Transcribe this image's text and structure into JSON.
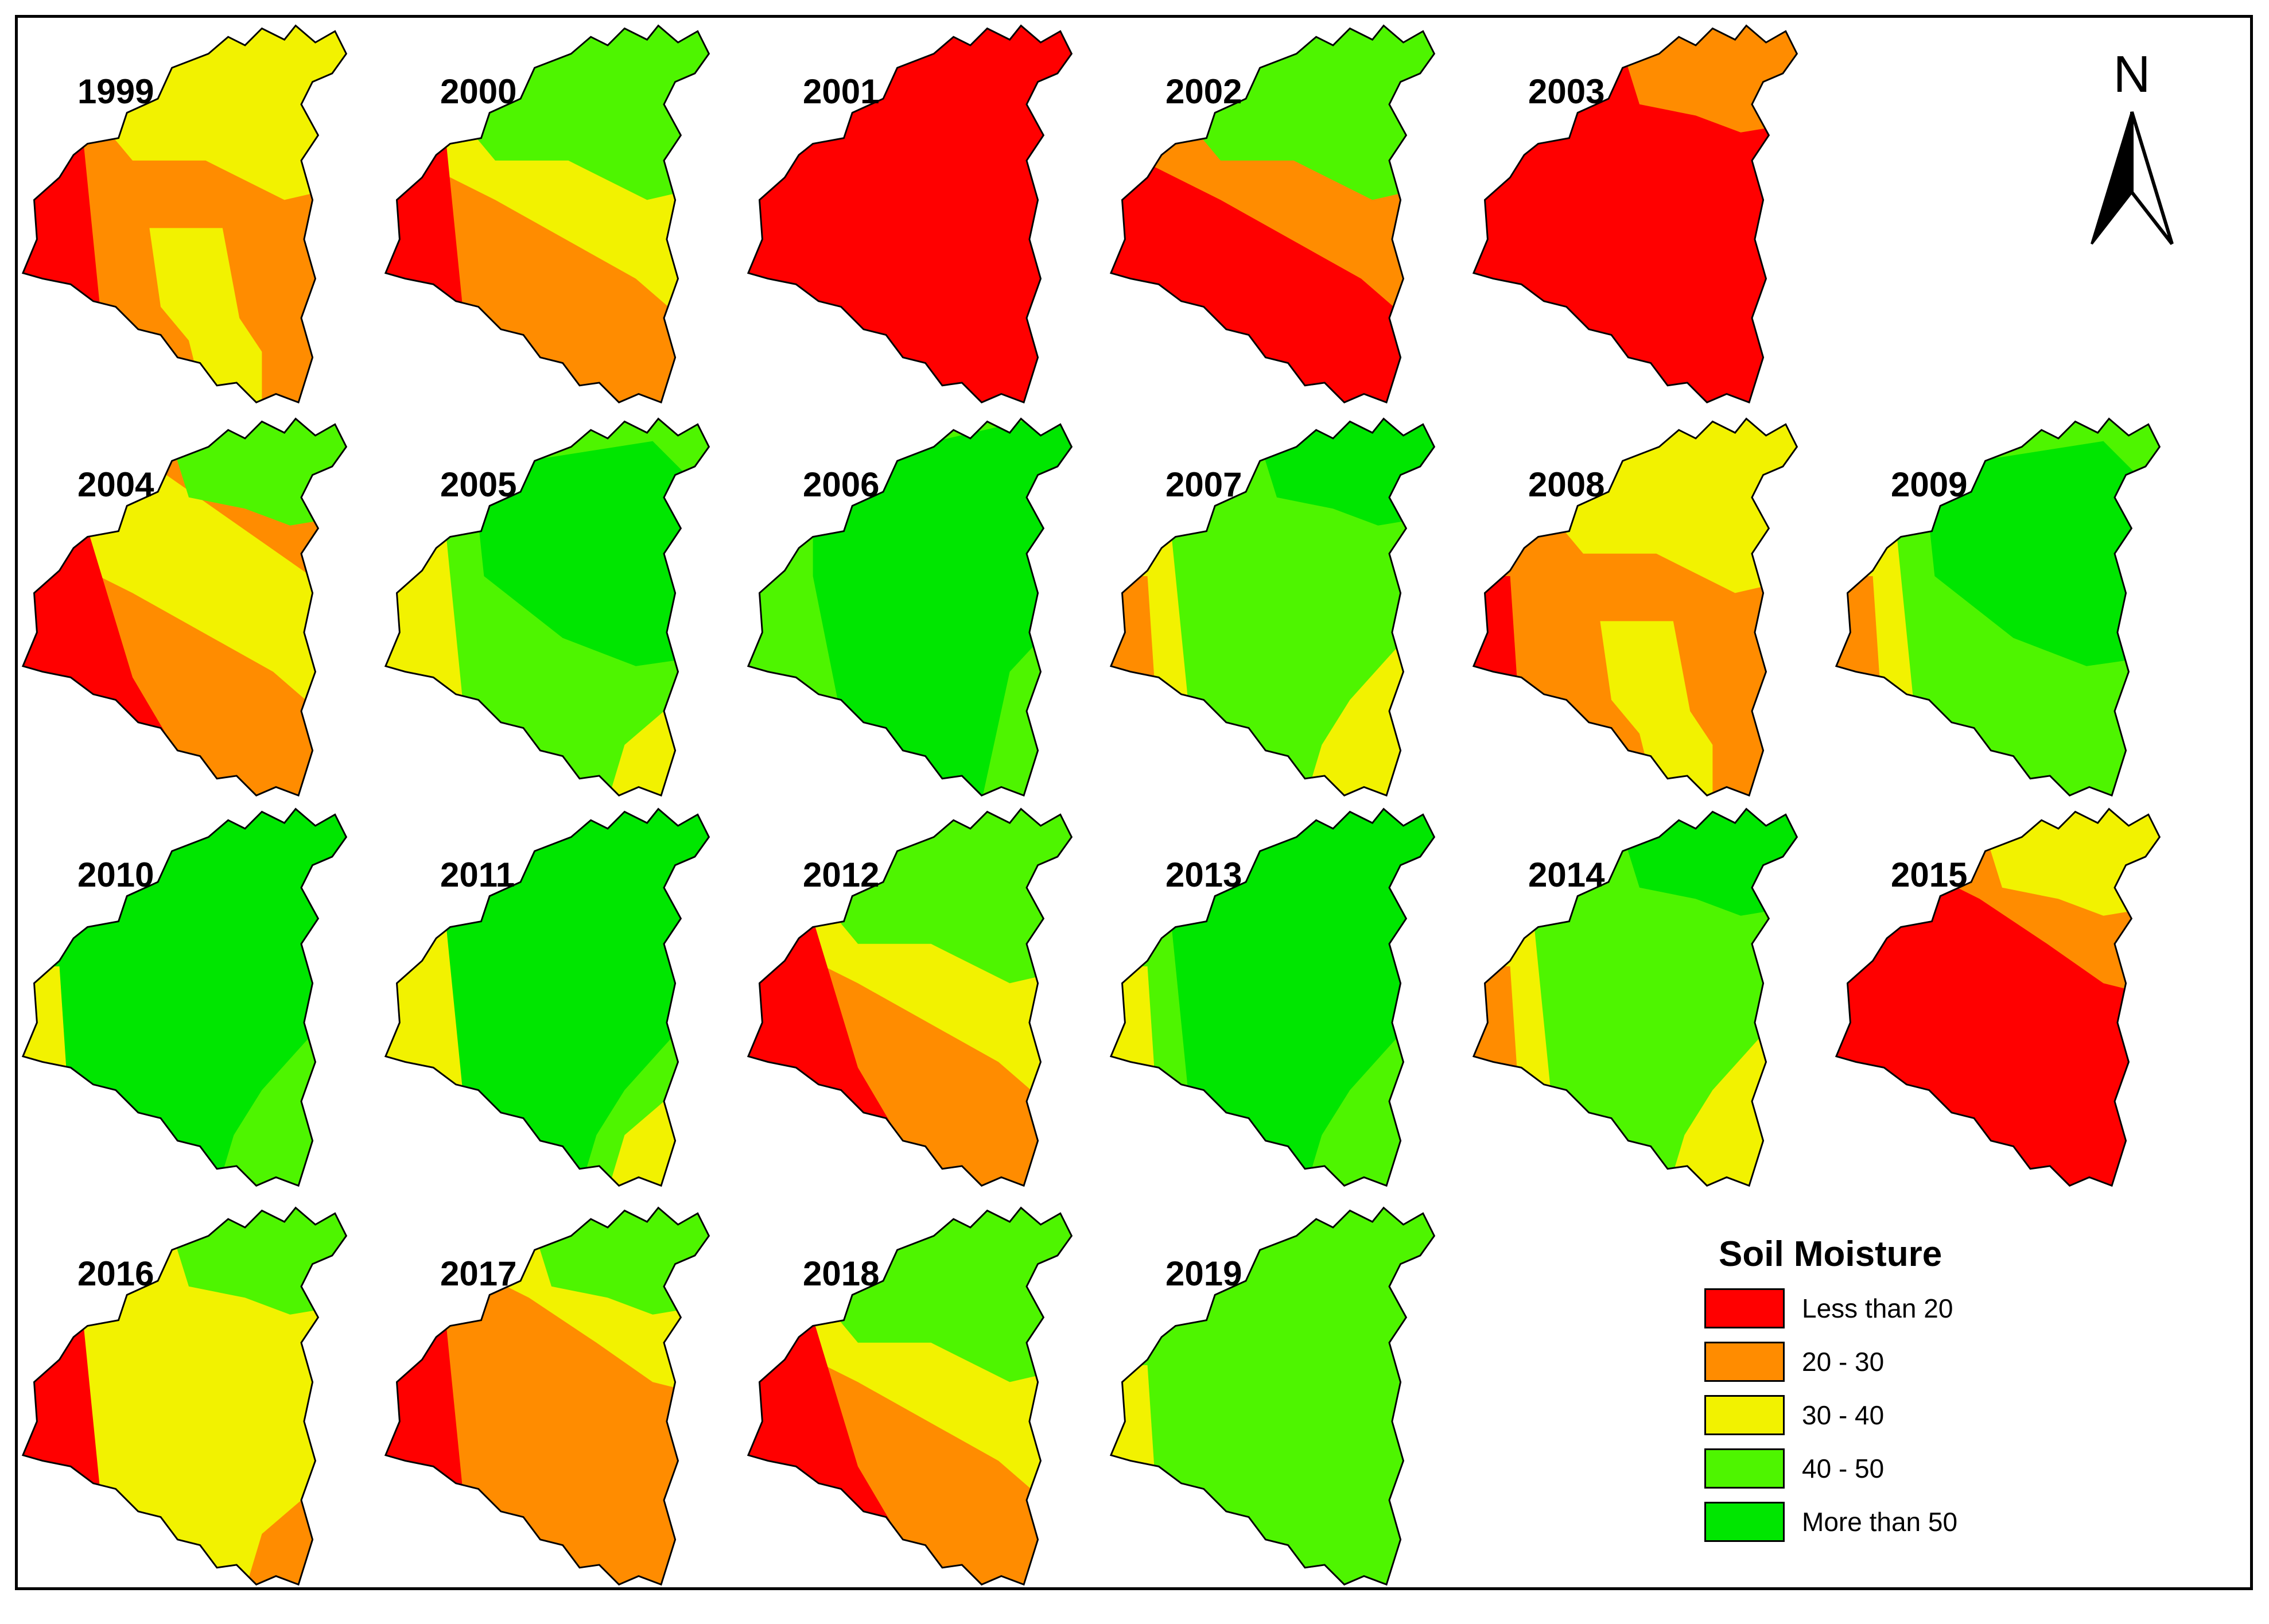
{
  "colors": {
    "lt20": "#ff0000",
    "c20_30": "#ff8c00",
    "c30_40": "#f2f200",
    "c40_50": "#4ef500",
    "gt50": "#00e600",
    "outline": "#000000"
  },
  "north_arrow": {
    "letter": "N"
  },
  "legend": {
    "title": "Soil Moisture",
    "items": [
      {
        "label": "Less than 20",
        "color": "#ff0000"
      },
      {
        "label": "20 - 30",
        "color": "#ff8c00"
      },
      {
        "label": "30 - 40",
        "color": "#f2f200"
      },
      {
        "label": "40 - 50",
        "color": "#4ef500"
      },
      {
        "label": "More than 50",
        "color": "#00e600"
      }
    ]
  },
  "maps": [
    {
      "year": "1999",
      "base": "c20_30",
      "zones": [
        {
          "cls": "c30_40",
          "shape": "north"
        },
        {
          "cls": "lt20",
          "shape": "westStrip"
        },
        {
          "cls": "c30_40",
          "shape": "southMid"
        }
      ]
    },
    {
      "year": "2000",
      "base": "c20_30",
      "zones": [
        {
          "cls": "c30_40",
          "shape": "band"
        },
        {
          "cls": "c40_50",
          "shape": "north"
        },
        {
          "cls": "lt20",
          "shape": "westStrip"
        }
      ]
    },
    {
      "year": "2001",
      "base": "lt20",
      "zones": []
    },
    {
      "year": "2002",
      "base": "lt20",
      "zones": [
        {
          "cls": "c20_30",
          "shape": "band"
        },
        {
          "cls": "c40_50",
          "shape": "north"
        }
      ]
    },
    {
      "year": "2003",
      "base": "lt20",
      "zones": [
        {
          "cls": "c20_30",
          "shape": "northSmall"
        }
      ]
    },
    {
      "year": "2004",
      "base": "c20_30",
      "zones": [
        {
          "cls": "c30_40",
          "shape": "band"
        },
        {
          "cls": "c40_50",
          "shape": "northSmall"
        },
        {
          "cls": "lt20",
          "shape": "westWedge"
        }
      ]
    },
    {
      "year": "2005",
      "base": "c40_50",
      "zones": [
        {
          "cls": "gt50",
          "shape": "center"
        },
        {
          "cls": "c30_40",
          "shape": "westStrip"
        },
        {
          "cls": "c30_40",
          "shape": "southEastSmall"
        }
      ]
    },
    {
      "year": "2006",
      "base": "c40_50",
      "zones": [
        {
          "cls": "gt50",
          "shape": "centerWide"
        }
      ]
    },
    {
      "year": "2007",
      "base": "c40_50",
      "zones": [
        {
          "cls": "gt50",
          "shape": "northSmall"
        },
        {
          "cls": "c30_40",
          "shape": "westStrip"
        },
        {
          "cls": "c20_30",
          "shape": "westStripThin"
        },
        {
          "cls": "c30_40",
          "shape": "southEast"
        }
      ]
    },
    {
      "year": "2008",
      "base": "c20_30",
      "zones": [
        {
          "cls": "c30_40",
          "shape": "north"
        },
        {
          "cls": "c30_40",
          "shape": "southMid"
        },
        {
          "cls": "lt20",
          "shape": "westStripThin"
        }
      ]
    },
    {
      "year": "2009",
      "base": "c40_50",
      "zones": [
        {
          "cls": "gt50",
          "shape": "center"
        },
        {
          "cls": "c30_40",
          "shape": "westStrip"
        },
        {
          "cls": "c20_30",
          "shape": "westStripThin"
        }
      ]
    },
    {
      "year": "2010",
      "base": "gt50",
      "zones": [
        {
          "cls": "c40_50",
          "shape": "southEast"
        },
        {
          "cls": "c30_40",
          "shape": "westStripThin"
        }
      ]
    },
    {
      "year": "2011",
      "base": "gt50",
      "zones": [
        {
          "cls": "c40_50",
          "shape": "southEast"
        },
        {
          "cls": "c30_40",
          "shape": "westStrip"
        },
        {
          "cls": "c30_40",
          "shape": "southEastSmall"
        }
      ]
    },
    {
      "year": "2012",
      "base": "c20_30",
      "zones": [
        {
          "cls": "c30_40",
          "shape": "band"
        },
        {
          "cls": "c40_50",
          "shape": "north"
        },
        {
          "cls": "lt20",
          "shape": "westWedge"
        }
      ]
    },
    {
      "year": "2013",
      "base": "gt50",
      "zones": [
        {
          "cls": "c40_50",
          "shape": "westStrip"
        },
        {
          "cls": "c30_40",
          "shape": "westStripThin"
        },
        {
          "cls": "c40_50",
          "shape": "southEast"
        }
      ]
    },
    {
      "year": "2014",
      "base": "c40_50",
      "zones": [
        {
          "cls": "gt50",
          "shape": "northSmall"
        },
        {
          "cls": "c30_40",
          "shape": "westStrip"
        },
        {
          "cls": "c20_30",
          "shape": "westStripThin"
        },
        {
          "cls": "c30_40",
          "shape": "southEast"
        }
      ]
    },
    {
      "year": "2015",
      "base": "lt20",
      "zones": [
        {
          "cls": "c20_30",
          "shape": "northBand"
        },
        {
          "cls": "c30_40",
          "shape": "northSmall"
        }
      ]
    },
    {
      "year": "2016",
      "base": "c30_40",
      "zones": [
        {
          "cls": "lt20",
          "shape": "westStrip"
        },
        {
          "cls": "c40_50",
          "shape": "northSmall"
        },
        {
          "cls": "c20_30",
          "shape": "southEastSmall"
        }
      ]
    },
    {
      "year": "2017",
      "base": "c20_30",
      "zones": [
        {
          "cls": "c30_40",
          "shape": "northBand"
        },
        {
          "cls": "c40_50",
          "shape": "northSmall"
        },
        {
          "cls": "lt20",
          "shape": "westStrip"
        }
      ]
    },
    {
      "year": "2018",
      "base": "c20_30",
      "zones": [
        {
          "cls": "c30_40",
          "shape": "band"
        },
        {
          "cls": "c40_50",
          "shape": "north"
        },
        {
          "cls": "lt20",
          "shape": "westWedge"
        }
      ]
    },
    {
      "year": "2019",
      "base": "c40_50",
      "zones": [
        {
          "cls": "c30_40",
          "shape": "westStripThin"
        }
      ]
    }
  ]
}
